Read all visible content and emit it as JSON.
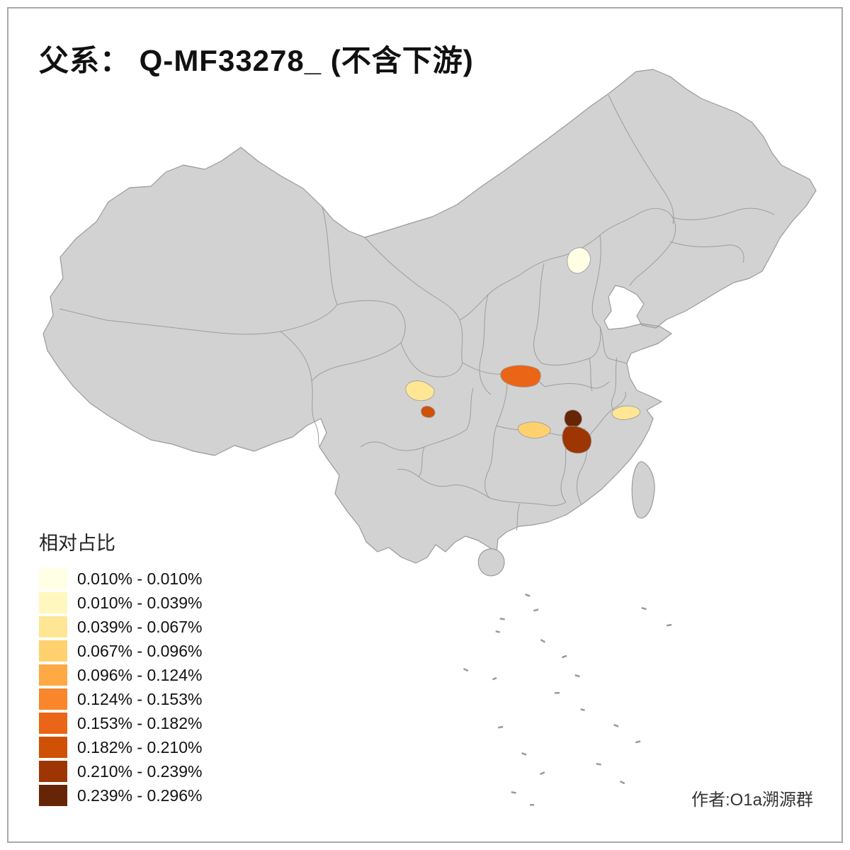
{
  "title": "父系： Q-MF33278_ (不含下游)",
  "legend": {
    "title": "相对占比",
    "items": [
      {
        "label": "0.010% - 0.010%",
        "color": "#FFFFE5"
      },
      {
        "label": "0.010% - 0.039%",
        "color": "#FFF7BD"
      },
      {
        "label": "0.039% - 0.067%",
        "color": "#FEE694"
      },
      {
        "label": "0.067% - 0.096%",
        "color": "#FED16E"
      },
      {
        "label": "0.096% - 0.124%",
        "color": "#FEA944"
      },
      {
        "label": "0.124% - 0.153%",
        "color": "#F9862B"
      },
      {
        "label": "0.153% - 0.182%",
        "color": "#EA6515"
      },
      {
        "label": "0.182% - 0.210%",
        "color": "#CE5106"
      },
      {
        "label": "0.210% - 0.239%",
        "color": "#9E3604"
      },
      {
        "label": "0.239% - 0.296%",
        "color": "#662506"
      }
    ]
  },
  "attribution": "作者:O1a溯源群",
  "map": {
    "base_fill": "#D2D2D2",
    "border_color": "#9A9A9A",
    "background": "#FFFFFF",
    "highlights": [
      {
        "id": "beijing-area",
        "legend_class": "0.010% - 0.010%",
        "color": "#FFFFE5"
      },
      {
        "id": "chengdu-area",
        "legend_class": "0.039% - 0.067%",
        "color": "#FEE694"
      },
      {
        "id": "zhejiang-area",
        "legend_class": "0.039% - 0.067%",
        "color": "#FEE694"
      },
      {
        "id": "hunan-area",
        "legend_class": "0.067% - 0.096%",
        "color": "#FED16E"
      },
      {
        "id": "nw-hubei-area",
        "legend_class": "0.153% - 0.182%",
        "color": "#EA6515"
      },
      {
        "id": "south-sichuan-area",
        "legend_class": "0.182% - 0.210%",
        "color": "#CE5106"
      },
      {
        "id": "jiangxi-lower-area",
        "legend_class": "0.210% - 0.239%",
        "color": "#9E3604"
      },
      {
        "id": "jiangxi-upper-area",
        "legend_class": "0.239% - 0.296%",
        "color": "#662506"
      }
    ]
  }
}
